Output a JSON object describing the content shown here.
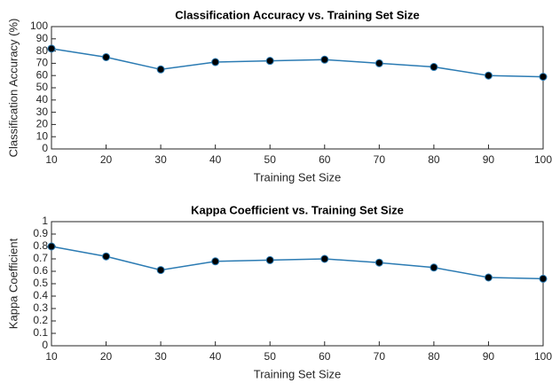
{
  "chart_data": [
    {
      "type": "line",
      "title": "Classification Accuracy vs. Training Set Size",
      "xlabel": "Training Set Size",
      "ylabel": "Classification Accuracy (%)",
      "x": [
        10,
        20,
        30,
        40,
        50,
        60,
        70,
        80,
        90,
        100
      ],
      "values": [
        82,
        75,
        65,
        71,
        72,
        73,
        70,
        67,
        60,
        59
      ],
      "color": "#2b7bb3",
      "marker_color": "#000000",
      "xlim": [
        10,
        100
      ],
      "xticks": [
        10,
        20,
        30,
        40,
        50,
        60,
        70,
        80,
        90,
        100
      ],
      "ylim": [
        0,
        100
      ],
      "yticks": [
        0,
        10,
        20,
        30,
        40,
        50,
        60,
        70,
        80,
        90,
        100
      ]
    },
    {
      "type": "line",
      "title": "Kappa Coefficient vs. Training Set Size",
      "xlabel": "Training Set Size",
      "ylabel": "Kappa Coefficient",
      "x": [
        10,
        20,
        30,
        40,
        50,
        60,
        70,
        80,
        90,
        100
      ],
      "values": [
        0.8,
        0.72,
        0.61,
        0.68,
        0.69,
        0.7,
        0.67,
        0.63,
        0.55,
        0.54
      ],
      "color": "#2b7bb3",
      "marker_color": "#000000",
      "xlim": [
        10,
        100
      ],
      "xticks": [
        10,
        20,
        30,
        40,
        50,
        60,
        70,
        80,
        90,
        100
      ],
      "ylim": [
        0,
        1
      ],
      "yticks": [
        0,
        0.1,
        0.2,
        0.3,
        0.4,
        0.5,
        0.6,
        0.7,
        0.8,
        0.9,
        1
      ]
    }
  ]
}
